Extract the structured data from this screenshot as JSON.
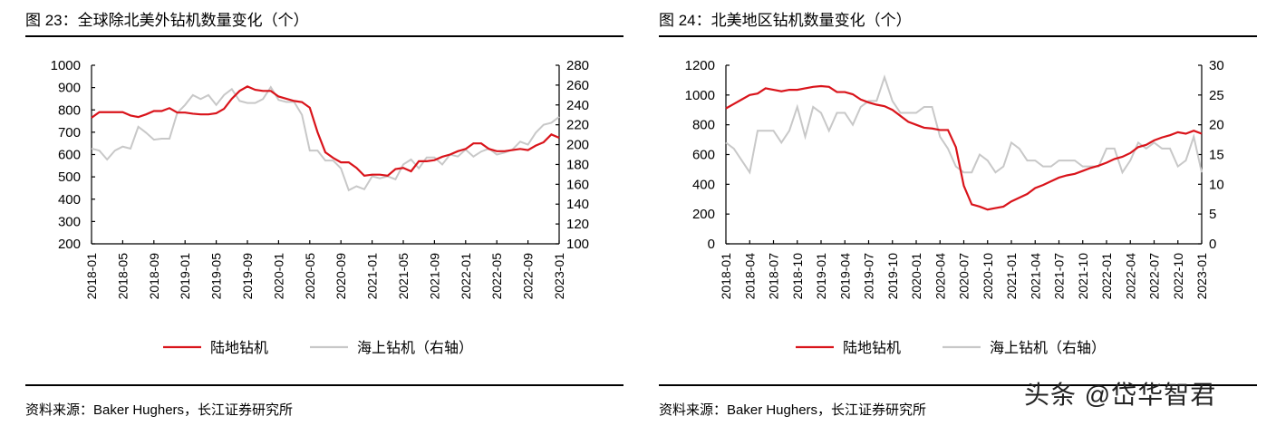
{
  "charts": [
    {
      "title": "图 23：全球除北美外钻机数量变化（个）",
      "source": "资料来源：Baker Hughers，长江证券研究所"
    },
    {
      "title": "图 24：北美地区钻机数量变化（个）",
      "source": "资料来源：Baker Hughers，长江证券研究所"
    }
  ],
  "watermark": "头条 @岱华智君",
  "chart_data": [
    {
      "type": "line",
      "start": "2018-01",
      "frequency": "monthly",
      "x_ticks": [
        "2018-01",
        "2018-05",
        "2018-09",
        "2019-01",
        "2019-05",
        "2019-09",
        "2020-01",
        "2020-05",
        "2020-09",
        "2021-01",
        "2021-05",
        "2021-09",
        "2022-01",
        "2022-05",
        "2022-09",
        "2023-01"
      ],
      "y_left": {
        "range": [
          200,
          1000
        ],
        "ticks": [
          200,
          300,
          400,
          500,
          600,
          700,
          800,
          900,
          1000
        ]
      },
      "y_right": {
        "range": [
          100,
          280
        ],
        "ticks": [
          100,
          120,
          140,
          160,
          180,
          200,
          220,
          240,
          260,
          280
        ]
      },
      "legend_position": "bottom",
      "grid": false,
      "series": [
        {
          "name": "陆地钻机",
          "axis": "left",
          "color": "#d9141b",
          "values": [
            765,
            790,
            790,
            790,
            790,
            775,
            768,
            780,
            795,
            795,
            808,
            788,
            788,
            783,
            780,
            780,
            785,
            805,
            850,
            885,
            905,
            890,
            885,
            885,
            860,
            850,
            840,
            835,
            810,
            700,
            610,
            585,
            565,
            565,
            540,
            505,
            510,
            510,
            505,
            535,
            540,
            525,
            570,
            570,
            575,
            590,
            600,
            615,
            625,
            650,
            650,
            625,
            615,
            615,
            620,
            625,
            620,
            640,
            655,
            690,
            675
          ]
        },
        {
          "name": "海上钻机（右轴）",
          "axis": "right",
          "color": "#c8c8c8",
          "values": [
            196,
            194,
            185,
            194,
            198,
            196,
            218,
            212,
            205,
            206,
            206,
            232,
            240,
            250,
            246,
            250,
            240,
            250,
            256,
            244,
            242,
            242,
            246,
            258,
            245,
            243,
            243,
            230,
            194,
            194,
            184,
            184,
            176,
            154,
            158,
            155,
            168,
            166,
            168,
            165,
            180,
            185,
            176,
            187,
            187,
            180,
            190,
            188,
            195,
            188,
            193,
            196,
            190,
            192,
            195,
            203,
            200,
            212,
            220,
            222,
            228
          ]
        }
      ]
    },
    {
      "type": "line",
      "start": "2018-01",
      "frequency": "monthly",
      "x_ticks": [
        "2018-01",
        "2018-04",
        "2018-07",
        "2018-10",
        "2019-01",
        "2019-04",
        "2019-07",
        "2019-10",
        "2020-01",
        "2020-04",
        "2020-07",
        "2020-10",
        "2021-01",
        "2021-04",
        "2021-07",
        "2021-10",
        "2022-01",
        "2022-04",
        "2022-07",
        "2022-10",
        "2023-01"
      ],
      "y_left": {
        "range": [
          0,
          1200
        ],
        "ticks": [
          0,
          200,
          400,
          600,
          800,
          1000,
          1200
        ]
      },
      "y_right": {
        "range": [
          0,
          30
        ],
        "ticks": [
          0,
          5,
          10,
          15,
          20,
          25,
          30
        ]
      },
      "legend_position": "bottom",
      "grid": false,
      "series": [
        {
          "name": "陆地钻机",
          "axis": "left",
          "color": "#d9141b",
          "values": [
            910,
            940,
            970,
            1000,
            1010,
            1045,
            1035,
            1025,
            1035,
            1035,
            1045,
            1055,
            1060,
            1055,
            1020,
            1020,
            1005,
            970,
            950,
            935,
            925,
            900,
            860,
            820,
            800,
            780,
            775,
            765,
            765,
            650,
            390,
            265,
            250,
            230,
            240,
            250,
            285,
            310,
            335,
            375,
            395,
            420,
            445,
            460,
            470,
            490,
            510,
            525,
            545,
            570,
            585,
            610,
            650,
            665,
            695,
            715,
            730,
            750,
            740,
            760,
            740
          ]
        },
        {
          "name": "海上钻机（右轴）",
          "axis": "right",
          "color": "#c8c8c8",
          "values": [
            17,
            16,
            14,
            12,
            19,
            19,
            19,
            17,
            19,
            23,
            18,
            23,
            22,
            19,
            22,
            22,
            20,
            23,
            24,
            24,
            28,
            24,
            22,
            22,
            22,
            23,
            23,
            18,
            16,
            13,
            12,
            12,
            15,
            14,
            12,
            13,
            17,
            16,
            14,
            14,
            13,
            13,
            14,
            14,
            14,
            13,
            13,
            13,
            16,
            16,
            12,
            14,
            17,
            16,
            17,
            16,
            16,
            13,
            14,
            18,
            12
          ]
        }
      ]
    }
  ]
}
